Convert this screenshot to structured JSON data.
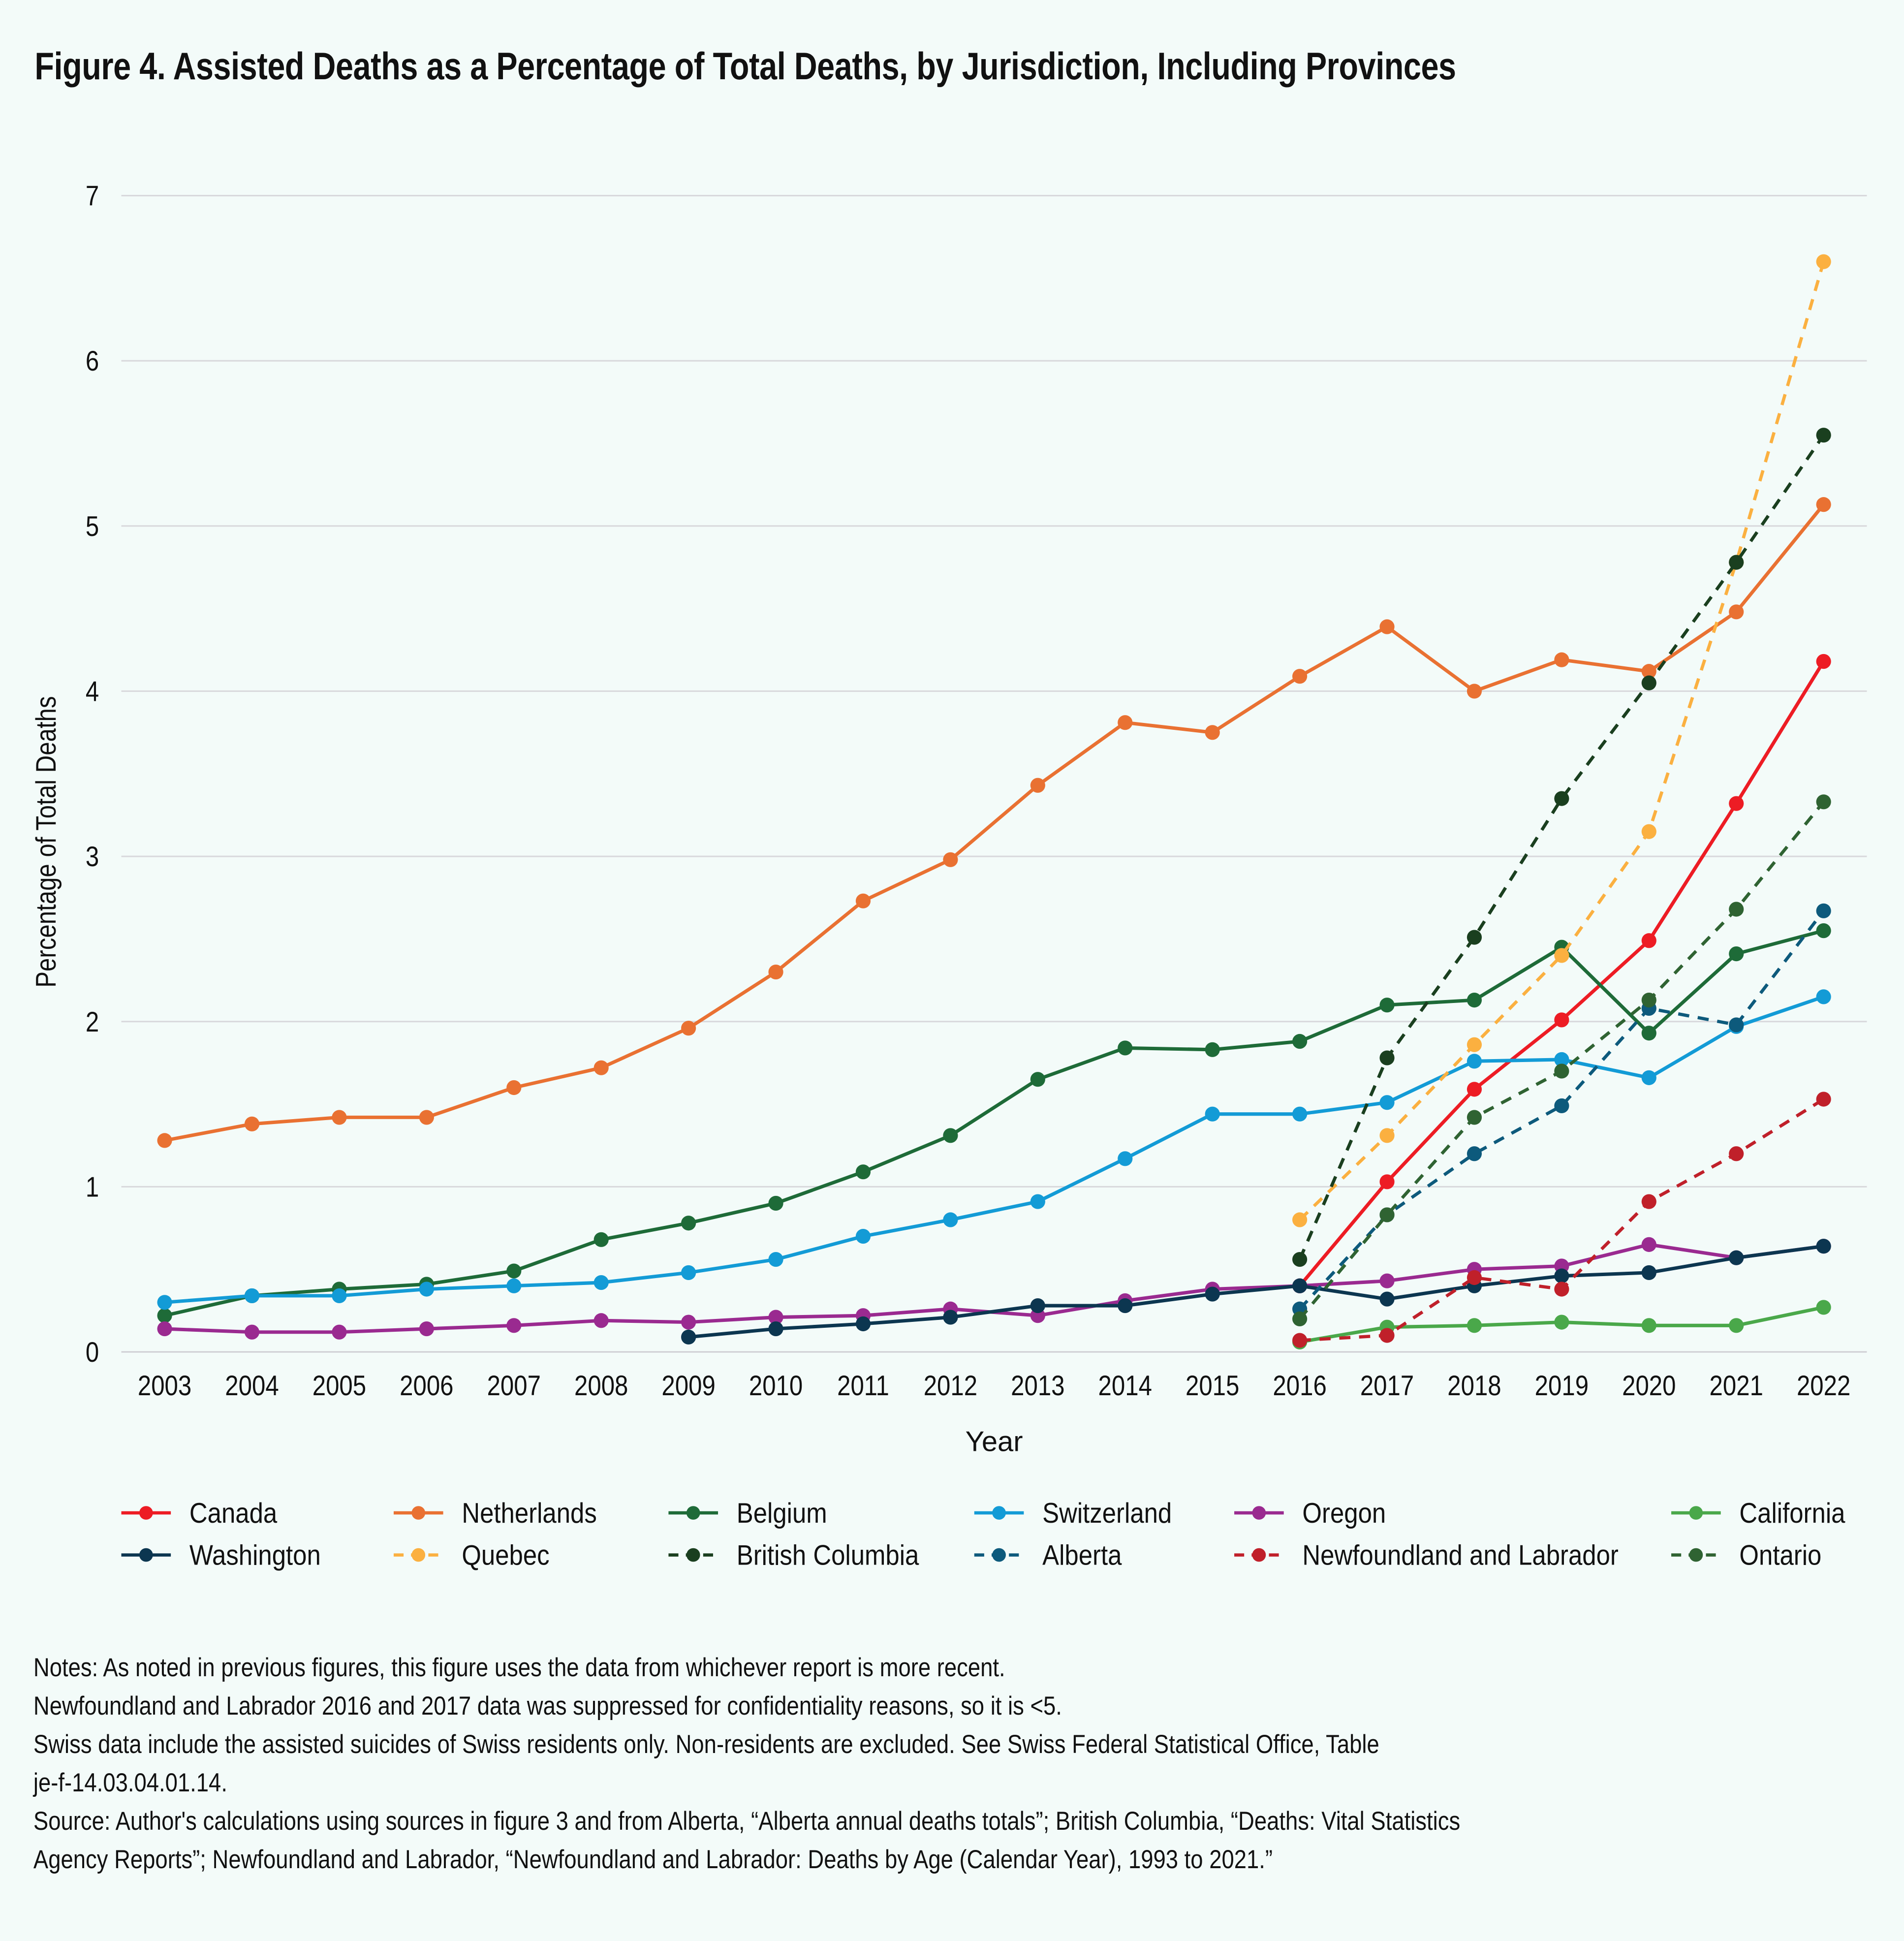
{
  "title": "Figure 4. Assisted Deaths as a Percentage of Total Deaths, by Jurisdiction, Including Provinces",
  "chart_data": {
    "type": "line",
    "xlabel": "Year",
    "ylabel": "Percentage of Total Deaths",
    "ylim": [
      0,
      7
    ],
    "yticks": [
      "0",
      "1",
      "2",
      "3",
      "4",
      "5",
      "6",
      "7"
    ],
    "grid": true,
    "legend_placement": "bottom",
    "categories": [
      "2003",
      "2004",
      "2005",
      "2006",
      "2007",
      "2008",
      "2009",
      "2010",
      "2011",
      "2012",
      "2013",
      "2014",
      "2015",
      "2016",
      "2017",
      "2018",
      "2019",
      "2020",
      "2021",
      "2022"
    ],
    "series": [
      {
        "name": "Canada",
        "color": "#ed1c24",
        "dashed": false,
        "values": [
          null,
          null,
          null,
          null,
          null,
          null,
          null,
          null,
          null,
          null,
          null,
          null,
          null,
          0.4,
          1.03,
          1.59,
          2.01,
          2.49,
          3.32,
          4.18
        ]
      },
      {
        "name": "Netherlands",
        "color": "#e97132",
        "dashed": false,
        "values": [
          1.28,
          1.38,
          1.42,
          1.42,
          1.6,
          1.72,
          1.96,
          2.3,
          2.73,
          2.98,
          3.43,
          3.81,
          3.75,
          4.09,
          4.39,
          4.0,
          4.19,
          4.12,
          4.48,
          5.13
        ]
      },
      {
        "name": "Belgium",
        "color": "#1e6b38",
        "dashed": false,
        "values": [
          0.22,
          0.34,
          0.38,
          0.41,
          0.49,
          0.68,
          0.78,
          0.9,
          1.09,
          1.31,
          1.65,
          1.84,
          1.83,
          1.88,
          2.1,
          2.13,
          2.45,
          1.93,
          2.41,
          2.55
        ]
      },
      {
        "name": "Switzerland",
        "color": "#139bd6",
        "dashed": false,
        "values": [
          0.3,
          0.34,
          0.34,
          0.38,
          0.4,
          0.42,
          0.48,
          0.56,
          0.7,
          0.8,
          0.91,
          1.17,
          1.44,
          1.44,
          1.51,
          1.76,
          1.77,
          1.66,
          1.97,
          2.15
        ]
      },
      {
        "name": "Oregon",
        "color": "#9a2a90",
        "dashed": false,
        "values": [
          0.14,
          0.12,
          0.12,
          0.14,
          0.16,
          0.19,
          0.18,
          0.21,
          0.22,
          0.26,
          0.22,
          0.31,
          0.38,
          0.4,
          0.43,
          0.5,
          0.52,
          0.65,
          0.57,
          0.64
        ]
      },
      {
        "name": "California",
        "color": "#4aa84a",
        "dashed": false,
        "values": [
          null,
          null,
          null,
          null,
          null,
          null,
          null,
          null,
          null,
          null,
          null,
          null,
          null,
          0.06,
          0.15,
          0.16,
          0.18,
          0.16,
          0.16,
          0.27
        ]
      },
      {
        "name": "Washington",
        "color": "#0c3650",
        "dashed": false,
        "values": [
          null,
          null,
          null,
          null,
          null,
          null,
          0.09,
          0.14,
          0.17,
          0.21,
          0.28,
          0.28,
          0.35,
          0.4,
          0.32,
          0.4,
          0.46,
          0.48,
          0.57,
          0.64
        ]
      },
      {
        "name": "Quebec",
        "color": "#fbb040",
        "dashed": true,
        "values": [
          null,
          null,
          null,
          null,
          null,
          null,
          null,
          null,
          null,
          null,
          null,
          null,
          null,
          0.8,
          1.31,
          1.86,
          2.4,
          3.15,
          4.78,
          6.6
        ]
      },
      {
        "name": "British Columbia",
        "color": "#1a3f1f",
        "dashed": true,
        "values": [
          null,
          null,
          null,
          null,
          null,
          null,
          null,
          null,
          null,
          null,
          null,
          null,
          null,
          0.56,
          1.78,
          2.51,
          3.35,
          4.05,
          4.78,
          5.55
        ]
      },
      {
        "name": "Alberta",
        "color": "#0d5a7c",
        "dashed": true,
        "values": [
          null,
          null,
          null,
          null,
          null,
          null,
          null,
          null,
          null,
          null,
          null,
          null,
          null,
          0.26,
          0.83,
          1.2,
          1.49,
          2.08,
          1.98,
          2.67
        ]
      },
      {
        "name": "Newfoundland and Labrador",
        "color": "#c0202a",
        "dashed": true,
        "values": [
          null,
          null,
          null,
          null,
          null,
          null,
          null,
          null,
          null,
          null,
          null,
          null,
          null,
          0.07,
          0.1,
          0.45,
          0.38,
          0.91,
          1.2,
          1.53
        ]
      },
      {
        "name": "Ontario",
        "color": "#2f6332",
        "dashed": true,
        "values": [
          null,
          null,
          null,
          null,
          null,
          null,
          null,
          null,
          null,
          null,
          null,
          null,
          null,
          0.2,
          0.83,
          1.42,
          1.7,
          2.13,
          2.68,
          3.33
        ]
      }
    ]
  },
  "notes": [
    "Notes: As noted in previous figures, this figure uses the data from whichever report is more recent.",
    "Newfoundland and Labrador 2016 and 2017 data was suppressed for confidentiality reasons, so it is <5.",
    "Swiss data include the assisted suicides of Swiss residents only. Non-residents are excluded. See Swiss Federal Statistical Office, Table",
    "je-f-14.03.04.01.14.",
    "Source: Author's calculations using sources in figure 3 and from Alberta, “Alberta annual deaths totals”; British Columbia, “Deaths: Vital Statistics",
    "Agency Reports”; Newfoundland and Labrador, “Newfoundland and Labrador: Deaths by Age (Calendar Year), 1993 to 2021.”"
  ],
  "background": "#f3fbf9"
}
